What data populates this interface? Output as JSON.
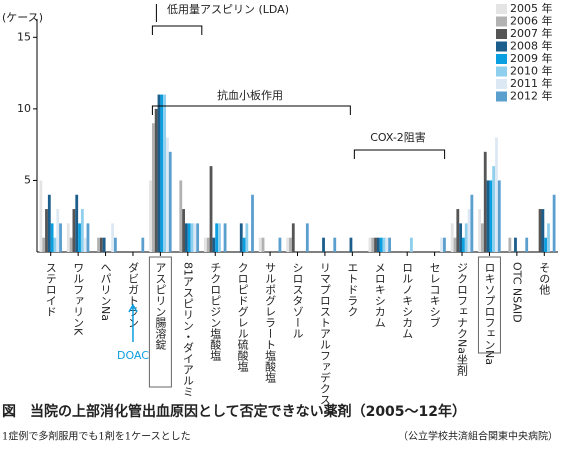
{
  "chart_data": {
    "type": "bar",
    "y_label": "(ケース)",
    "caption": "図　当院の上部消化管出血原因として否定できない薬剤（2005～12年）",
    "note": "1症例で多剤服用でも1剤を1ケースとした",
    "source": "（公立学校共済組合関東中央病院）",
    "annotations": [
      "低用量アスピリン (LDA)",
      "抗血小板作用",
      "COX-2阻害",
      "DOAC"
    ],
    "categories": [
      "ステロイド",
      "ワルファリンK",
      "ヘパリンNa",
      "ダビガトラン",
      "アスピリン腸溶錠",
      "81アスピリン・ダイアルミ",
      "チクロピジン塩酸塩",
      "クロピドグレル硫酸塩",
      "サルポグレラート塩酸塩",
      "シロスタゾール",
      "リマプロストアルファデクス",
      "エトドラク",
      "メロキシカム",
      "ロルノキシカム",
      "セレコキシブ",
      "ジクロフェナクNa坐剤",
      "ロキソプロフェンNa",
      "OTC NSAID",
      "その他"
    ],
    "series": [
      {
        "name": "2005 年",
        "color": "#e4e4e4",
        "values": [
          5,
          2,
          0,
          0,
          5,
          0,
          1,
          0,
          1,
          1,
          0,
          0,
          1,
          0,
          0,
          2,
          3,
          0,
          0
        ]
      },
      {
        "name": "2006 年",
        "color": "#b2b2b2",
        "values": [
          1,
          1,
          1,
          0,
          9,
          5,
          1,
          0,
          1,
          1,
          0,
          0,
          1,
          0,
          0,
          1,
          2,
          1,
          0
        ]
      },
      {
        "name": "2007 年",
        "color": "#555555",
        "values": [
          3,
          3,
          1,
          0,
          10,
          3,
          6,
          0,
          0,
          2,
          0,
          0,
          1,
          0,
          0,
          3,
          7,
          0,
          3
        ]
      },
      {
        "name": "2008 年",
        "color": "#1b5e8c",
        "values": [
          4,
          4,
          1,
          0,
          11,
          2,
          1,
          2,
          0,
          0,
          1,
          1,
          1,
          0,
          0,
          2,
          5,
          1,
          3
        ]
      },
      {
        "name": "2009 年",
        "color": "#0a9fe0",
        "values": [
          2,
          2,
          0,
          0,
          11,
          2,
          2,
          1,
          0,
          0,
          0,
          0,
          1,
          0,
          0,
          1,
          5,
          0,
          1
        ]
      },
      {
        "name": "2010 年",
        "color": "#8fcfee",
        "values": [
          1,
          3,
          0,
          0,
          11,
          2,
          2,
          2,
          0,
          0,
          0,
          0,
          1,
          1,
          0,
          2,
          6,
          0,
          2
        ]
      },
      {
        "name": "2011 年",
        "color": "#dce9f5",
        "values": [
          3,
          1,
          2,
          0,
          8,
          2,
          0,
          0,
          0,
          0,
          0,
          0,
          1,
          0,
          1,
          3,
          8,
          0,
          0
        ]
      },
      {
        "name": "2012 年",
        "color": "#5b9fcf",
        "values": [
          2,
          2,
          1,
          1,
          7,
          2,
          2,
          4,
          1,
          2,
          1,
          0,
          1,
          0,
          1,
          4,
          5,
          1,
          4
        ]
      }
    ],
    "ylim": [
      0,
      16
    ],
    "yticks": [
      5,
      10,
      15
    ]
  }
}
